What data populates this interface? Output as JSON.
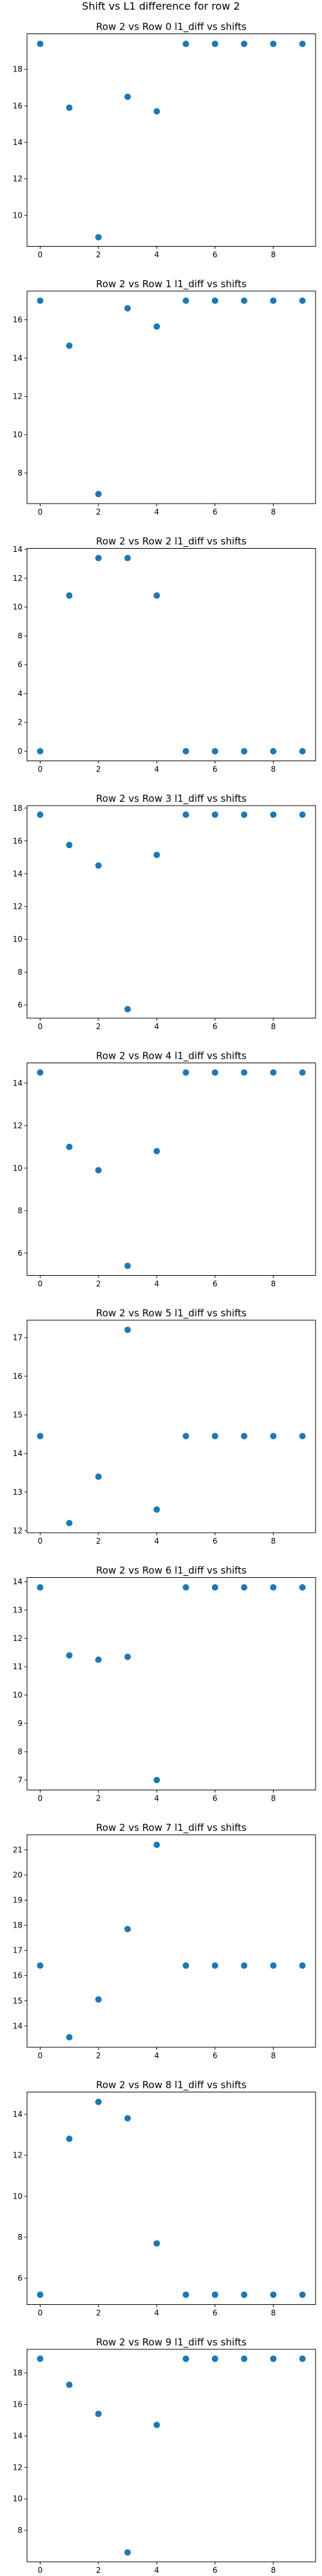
{
  "figure": {
    "suptitle": "Shift vs L1 difference for row 2"
  },
  "style": {
    "marker_color": "#1f77b4",
    "axis_color": "#000000",
    "background": "#ffffff"
  },
  "chart_data": [
    {
      "type": "scatter",
      "title": "Row 2 vs Row 0 l1_diff vs shifts",
      "x": [
        0,
        1,
        2,
        3,
        4,
        5,
        6,
        7,
        8,
        9
      ],
      "y": [
        19.4,
        15.9,
        8.8,
        16.5,
        15.7,
        19.4,
        19.4,
        19.4,
        19.4,
        19.4
      ],
      "xlim": [
        -0.45,
        9.45
      ],
      "ylim": [
        8.3,
        19.95
      ],
      "xticks": [
        0,
        2,
        4,
        6,
        8
      ],
      "yticks": [
        10,
        12,
        14,
        16,
        18
      ],
      "xlabel": "",
      "ylabel": "",
      "grid": false,
      "legend": "none"
    },
    {
      "type": "scatter",
      "title": "Row 2 vs Row 1 l1_diff vs shifts",
      "x": [
        0,
        1,
        2,
        3,
        4,
        5,
        6,
        7,
        8,
        9
      ],
      "y": [
        17.0,
        14.65,
        6.9,
        16.6,
        15.65,
        17.0,
        17.0,
        17.0,
        17.0,
        17.0
      ],
      "xlim": [
        -0.45,
        9.45
      ],
      "ylim": [
        6.4,
        17.5
      ],
      "xticks": [
        0,
        2,
        4,
        6,
        8
      ],
      "yticks": [
        8,
        10,
        12,
        14,
        16
      ],
      "xlabel": "",
      "ylabel": "",
      "grid": false,
      "legend": "none"
    },
    {
      "type": "scatter",
      "title": "Row 2 vs Row 2 l1_diff vs shifts",
      "x": [
        0,
        1,
        2,
        3,
        4,
        5,
        6,
        7,
        8,
        9
      ],
      "y": [
        0.0,
        10.8,
        13.4,
        13.4,
        10.8,
        0.0,
        0.0,
        0.0,
        0.0,
        0.0
      ],
      "xlim": [
        -0.45,
        9.45
      ],
      "ylim": [
        -0.67,
        14.07
      ],
      "xticks": [
        0,
        2,
        4,
        6,
        8
      ],
      "yticks": [
        0,
        2,
        4,
        6,
        8,
        10,
        12,
        14
      ],
      "xlabel": "",
      "ylabel": "",
      "grid": false,
      "legend": "none"
    },
    {
      "type": "scatter",
      "title": "Row 2 vs Row 3 l1_diff vs shifts",
      "x": [
        0,
        1,
        2,
        3,
        4,
        5,
        6,
        7,
        8,
        9
      ],
      "y": [
        17.6,
        15.75,
        14.5,
        5.75,
        15.15,
        17.6,
        17.6,
        17.6,
        17.6,
        17.6
      ],
      "xlim": [
        -0.45,
        9.45
      ],
      "ylim": [
        5.2,
        18.15
      ],
      "xticks": [
        0,
        2,
        4,
        6,
        8
      ],
      "yticks": [
        6,
        8,
        10,
        12,
        14,
        16,
        18
      ],
      "xlabel": "",
      "ylabel": "",
      "grid": false,
      "legend": "none"
    },
    {
      "type": "scatter",
      "title": "Row 2 vs Row 4 l1_diff vs shifts",
      "x": [
        0,
        1,
        2,
        3,
        4,
        5,
        6,
        7,
        8,
        9
      ],
      "y": [
        14.5,
        11.0,
        9.9,
        5.4,
        10.8,
        14.5,
        14.5,
        14.5,
        14.5,
        14.5
      ],
      "xlim": [
        -0.45,
        9.45
      ],
      "ylim": [
        4.95,
        14.95
      ],
      "xticks": [
        0,
        2,
        4,
        6,
        8
      ],
      "yticks": [
        6,
        8,
        10,
        12,
        14
      ],
      "xlabel": "",
      "ylabel": "",
      "grid": false,
      "legend": "none"
    },
    {
      "type": "scatter",
      "title": "Row 2 vs Row 5 l1_diff vs shifts",
      "x": [
        0,
        1,
        2,
        3,
        4,
        5,
        6,
        7,
        8,
        9
      ],
      "y": [
        14.45,
        12.2,
        13.4,
        17.2,
        12.55,
        14.45,
        14.45,
        14.45,
        14.45,
        14.45
      ],
      "xlim": [
        -0.45,
        9.45
      ],
      "ylim": [
        11.95,
        17.45
      ],
      "xticks": [
        0,
        2,
        4,
        6,
        8
      ],
      "yticks": [
        12,
        13,
        14,
        15,
        16,
        17
      ],
      "xlabel": "",
      "ylabel": "",
      "grid": false,
      "legend": "none"
    },
    {
      "type": "scatter",
      "title": "Row 2 vs Row 6 l1_diff vs shifts",
      "x": [
        0,
        1,
        2,
        3,
        4,
        5,
        6,
        7,
        8,
        9
      ],
      "y": [
        13.8,
        11.4,
        11.25,
        11.35,
        7.0,
        13.8,
        13.8,
        13.8,
        13.8,
        13.8
      ],
      "xlim": [
        -0.45,
        9.45
      ],
      "ylim": [
        6.65,
        14.15
      ],
      "xticks": [
        0,
        2,
        4,
        6,
        8
      ],
      "yticks": [
        7,
        8,
        9,
        10,
        11,
        12,
        13,
        14
      ],
      "xlabel": "",
      "ylabel": "",
      "grid": false,
      "legend": "none"
    },
    {
      "type": "scatter",
      "title": "Row 2 vs Row 7 l1_diff vs shifts",
      "x": [
        0,
        1,
        2,
        3,
        4,
        5,
        6,
        7,
        8,
        9
      ],
      "y": [
        16.4,
        13.55,
        15.05,
        17.85,
        21.2,
        16.4,
        16.4,
        16.4,
        16.4,
        16.4
      ],
      "xlim": [
        -0.45,
        9.45
      ],
      "ylim": [
        13.15,
        21.6
      ],
      "xticks": [
        0,
        2,
        4,
        6,
        8
      ],
      "yticks": [
        14,
        15,
        16,
        17,
        18,
        19,
        20,
        21
      ],
      "xlabel": "",
      "ylabel": "",
      "grid": false,
      "legend": "none"
    },
    {
      "type": "scatter",
      "title": "Row 2 vs Row 8 l1_diff vs shifts",
      "x": [
        0,
        1,
        2,
        3,
        4,
        5,
        6,
        7,
        8,
        9
      ],
      "y": [
        5.2,
        12.8,
        14.6,
        13.8,
        7.7,
        5.2,
        5.2,
        5.2,
        5.2,
        5.2
      ],
      "xlim": [
        -0.45,
        9.45
      ],
      "ylim": [
        4.72,
        15.08
      ],
      "xticks": [
        0,
        2,
        4,
        6,
        8
      ],
      "yticks": [
        6,
        8,
        10,
        12,
        14
      ],
      "xlabel": "",
      "ylabel": "",
      "grid": false,
      "legend": "none"
    },
    {
      "type": "scatter",
      "title": "Row 2 vs Row 9 l1_diff vs shifts",
      "x": [
        0,
        1,
        2,
        3,
        4,
        5,
        6,
        7,
        8,
        9
      ],
      "y": [
        18.9,
        17.25,
        15.4,
        6.6,
        14.7,
        18.9,
        18.9,
        18.9,
        18.9,
        18.9
      ],
      "xlim": [
        -0.45,
        9.45
      ],
      "ylim": [
        6.0,
        19.5
      ],
      "xticks": [
        0,
        2,
        4,
        6,
        8
      ],
      "yticks": [
        8,
        10,
        12,
        14,
        16,
        18
      ],
      "xlabel": "",
      "ylabel": "",
      "grid": false,
      "legend": "none"
    }
  ]
}
